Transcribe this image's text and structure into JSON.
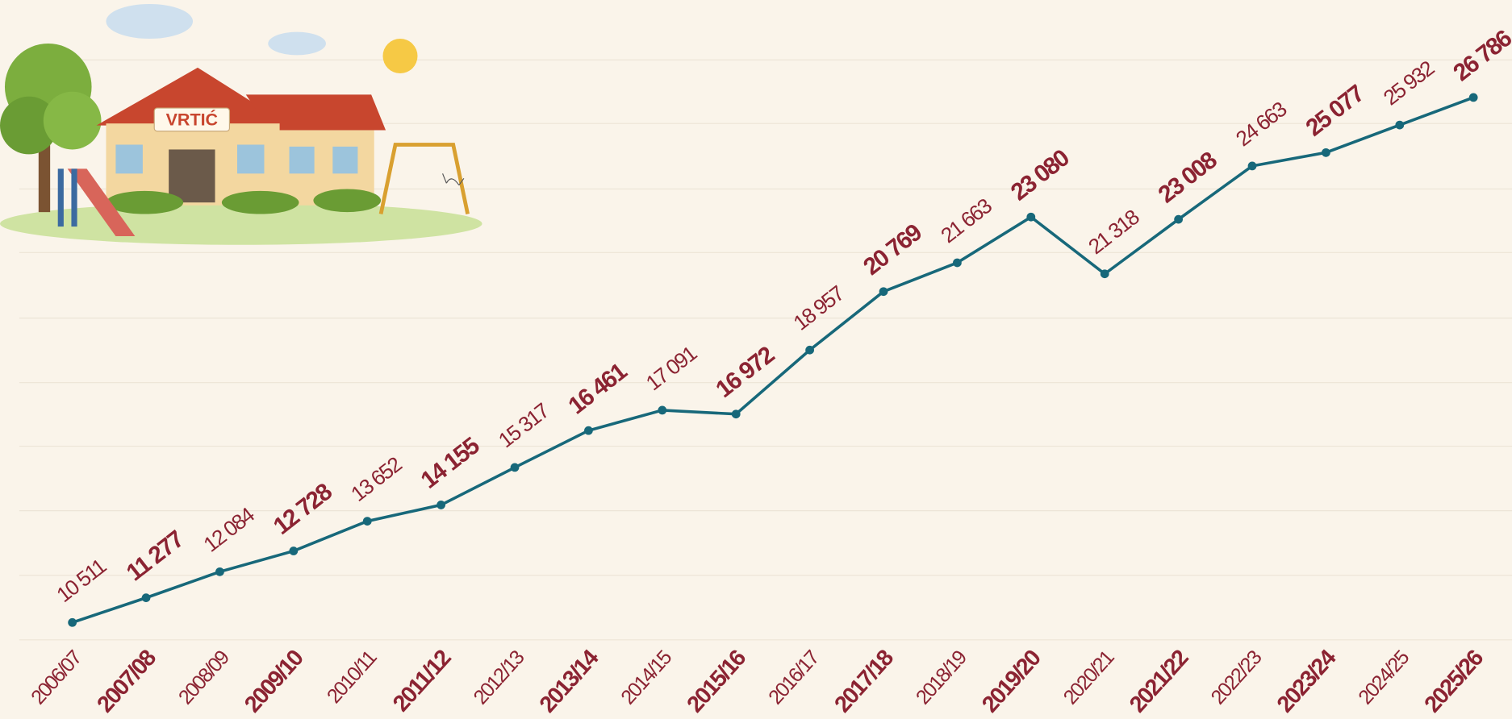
{
  "chart_data": {
    "type": "line",
    "categories": [
      "2006/07",
      "2007/08",
      "2008/09",
      "2009/10",
      "2010/11",
      "2011/12",
      "2012/13",
      "2013/14",
      "2014/15",
      "2015/16",
      "2016/17",
      "2017/18",
      "2018/19",
      "2019/20",
      "2020/21",
      "2021/22",
      "2022/23",
      "2023/24",
      "2024/25",
      "2025/26"
    ],
    "values": [
      10511,
      11277,
      12084,
      12728,
      13652,
      14155,
      15317,
      16461,
      17091,
      16972,
      18957,
      20769,
      21663,
      23080,
      21318,
      23008,
      24663,
      25077,
      25932,
      26786
    ],
    "value_labels": [
      "10 511",
      "11 277",
      "12 084",
      "12 728",
      "13 652",
      "14 155",
      "15 317",
      "16 461",
      "17 091",
      "16 972",
      "18 957",
      "20 769",
      "21 663",
      "23 080",
      "21 318",
      "23 008",
      "24 663",
      "25 077",
      "25 932",
      "26 786"
    ],
    "color": "#17687a",
    "label_color": "#8b2332"
  },
  "illustration": {
    "sign": "VRTIĆ"
  }
}
